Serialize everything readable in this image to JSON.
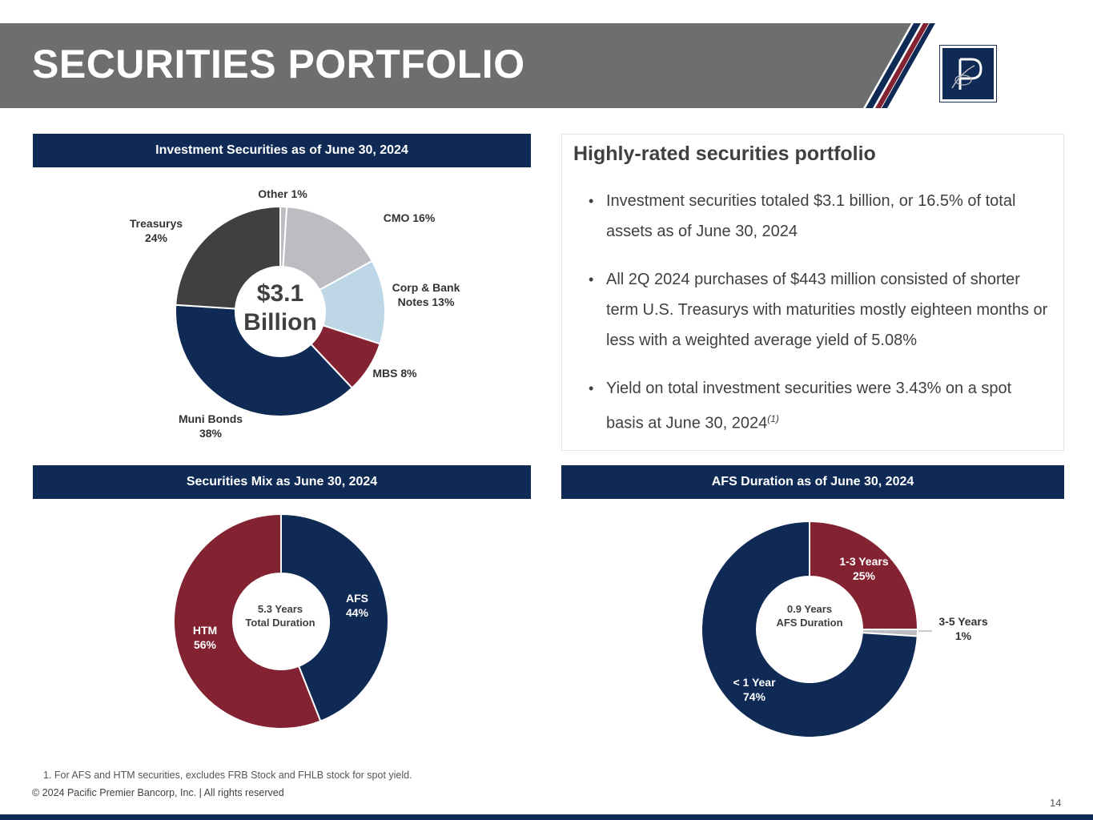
{
  "title": "SECURITIES PORTFOLIO",
  "colors": {
    "navy": "#0f2a55",
    "maroon": "#832331",
    "gray_dark": "#404040",
    "gray_light": "#bcbcc2",
    "blue_light": "#bed7e6",
    "title_gray": "#6d6e70",
    "white": "#ffffff"
  },
  "logo": {
    "icon": "pacific-premier-p-logo-icon"
  },
  "panels": {
    "investment": {
      "header": "Investment Securities as of June 30, 2024"
    },
    "mix": {
      "header": "Securities Mix as June 30, 2024"
    },
    "duration": {
      "header": "AFS Duration as of June 30, 2024"
    }
  },
  "highlights": {
    "title": "Highly-rated securities portfolio",
    "bullets": [
      "Investment securities totaled $3.1 billion, or 16.5% of total assets as of June 30, 2024",
      "All 2Q 2024 purchases of $443 million consisted of shorter term U.S. Treasurys with maturities mostly eighteen months or less with a weighted average yield of 5.08%",
      "Yield on total investment securities were 3.43% on a spot basis at June 30, 2024"
    ],
    "bullet3_footnote_ref": "(1)"
  },
  "chart_data": [
    {
      "type": "pie",
      "title": "Investment Securities as of June 30, 2024",
      "center_text": [
        "$3.1",
        "Billion"
      ],
      "slices": [
        {
          "label": "Other 1%",
          "value": 1,
          "color": "#bcbcc2"
        },
        {
          "label": "CMO 16%",
          "value": 16,
          "color": "#bcbcc2"
        },
        {
          "label": "Corp & Bank Notes 13%",
          "value": 13,
          "color": "#bed7e6"
        },
        {
          "label": "MBS 8%",
          "value": 8,
          "color": "#832331"
        },
        {
          "label": "Muni Bonds 38%",
          "value": 38,
          "color": "#0f2a55"
        },
        {
          "label": "Treasurys 24%",
          "value": 24,
          "color": "#404040"
        }
      ]
    },
    {
      "type": "pie",
      "title": "Securities Mix as June 30, 2024",
      "center_text": [
        "5.3 Years",
        "Total Duration"
      ],
      "slices": [
        {
          "label": "AFS 44%",
          "value": 44,
          "color": "#0f2a55"
        },
        {
          "label": "HTM 56%",
          "value": 56,
          "color": "#832331"
        }
      ]
    },
    {
      "type": "pie",
      "title": "AFS Duration as of June 30, 2024",
      "center_text": [
        "0.9 Years",
        "AFS Duration"
      ],
      "slices": [
        {
          "label": "1-3 Years 25%",
          "value": 25,
          "color": "#832331"
        },
        {
          "label": "3-5 Years 1%",
          "value": 1,
          "color": "#bcbcc2"
        },
        {
          "label": "< 1 Year 74%",
          "value": 74,
          "color": "#0f2a55"
        }
      ]
    }
  ],
  "footnote": "1. For AFS and HTM securities, excludes FRB Stock and FHLB stock for spot yield.",
  "copyright": "© 2024 Pacific Premier Bancorp, Inc. | All rights reserved",
  "page_number": "14"
}
